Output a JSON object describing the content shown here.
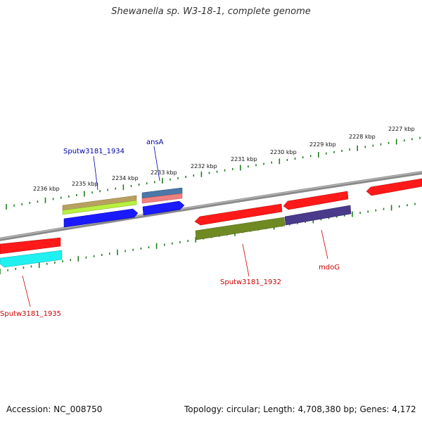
{
  "title": "Shewanella sp. W3-18-1, complete genome",
  "footer": {
    "accession": "Accession: NC_008750",
    "summary": "Topology: circular; Length: 4,708,380 bp; Genes: 4,172"
  },
  "ruler": {
    "unit": "kbp",
    "labels": [
      "2236 kbp",
      "2235 kbp",
      "2234 kbp",
      "2233 kbp",
      "2232 kbp",
      "2231 kbp",
      "2230 kbp",
      "2229 kbp",
      "2228 kbp",
      "2227 kbp"
    ]
  },
  "gene_labels": [
    {
      "id": "sputw3181_1934",
      "text": "Sputw3181_1934",
      "color": "#0000aa"
    },
    {
      "id": "ansa",
      "text": "ansA",
      "color": "#0000aa"
    },
    {
      "id": "sputw3181_1935",
      "text": "Sputw3181_1935",
      "color": "#cc0000"
    },
    {
      "id": "sputw3181_1932",
      "text": "Sputw3181_1932",
      "color": "#cc0000"
    },
    {
      "id": "mdog",
      "text": "mdoG",
      "color": "#cc0000"
    }
  ],
  "colors": {
    "backbone": "#888888",
    "ticks": "#1f7f1f",
    "red": "#ff1a1a",
    "blue": "#1a1aff",
    "olive": "#7a8c2a",
    "tan": "#b8a060",
    "lime": "#b8f040",
    "steel": "#4a78a8",
    "pink": "#f08080",
    "cyan": "#20f0f0",
    "purple": "#4a3a8c"
  }
}
